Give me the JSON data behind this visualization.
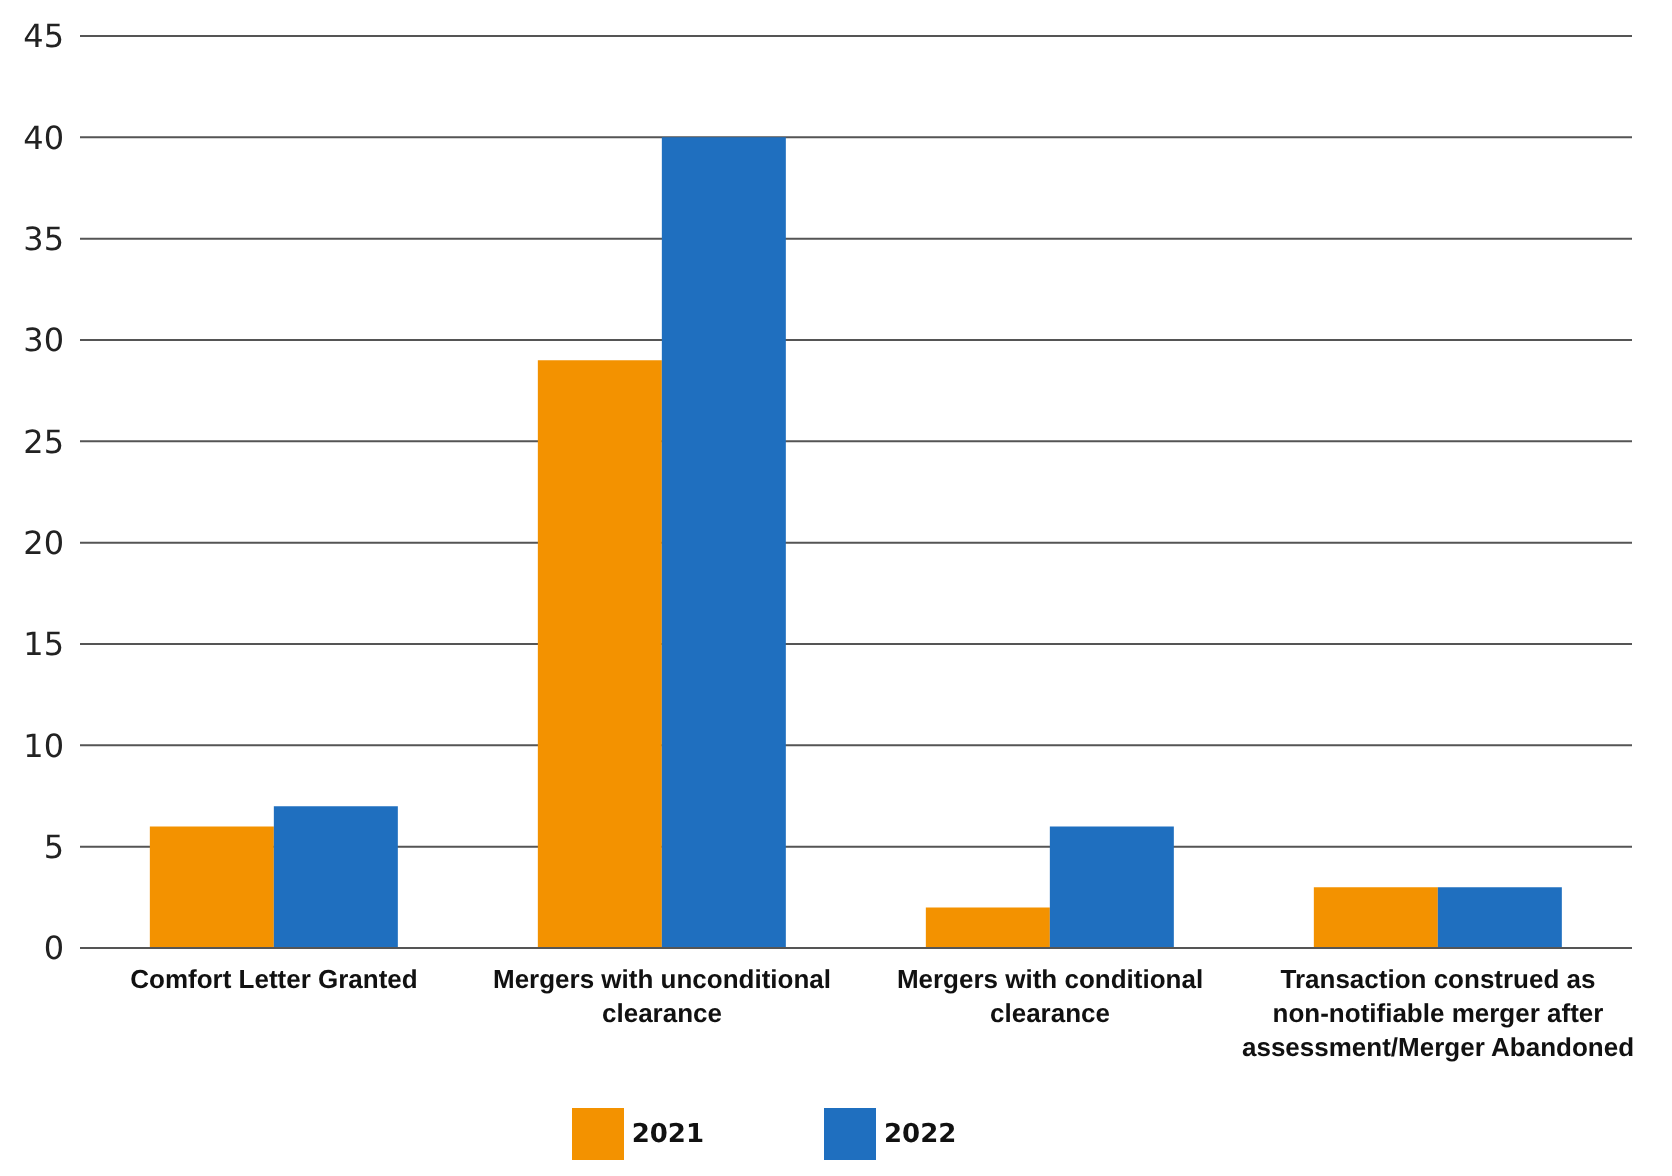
{
  "chart_data": {
    "type": "bar",
    "categories": [
      "Comfort Letter Granted",
      "Mergers with unconditional clearance",
      "Mergers with conditional clearance",
      "Transaction construed as non-notifiable merger after assessment/Merger Abandoned"
    ],
    "series": [
      {
        "name": "2021",
        "color": "#f39200",
        "values": [
          6,
          29,
          2,
          3
        ]
      },
      {
        "name": "2022",
        "color": "#1f6fbf",
        "values": [
          7,
          40,
          6,
          3
        ]
      }
    ],
    "ylim": [
      0,
      45
    ],
    "yticks": [
      0,
      5,
      10,
      15,
      20,
      25,
      30,
      35,
      40,
      45
    ],
    "grid": "y",
    "legend": "bottom"
  }
}
